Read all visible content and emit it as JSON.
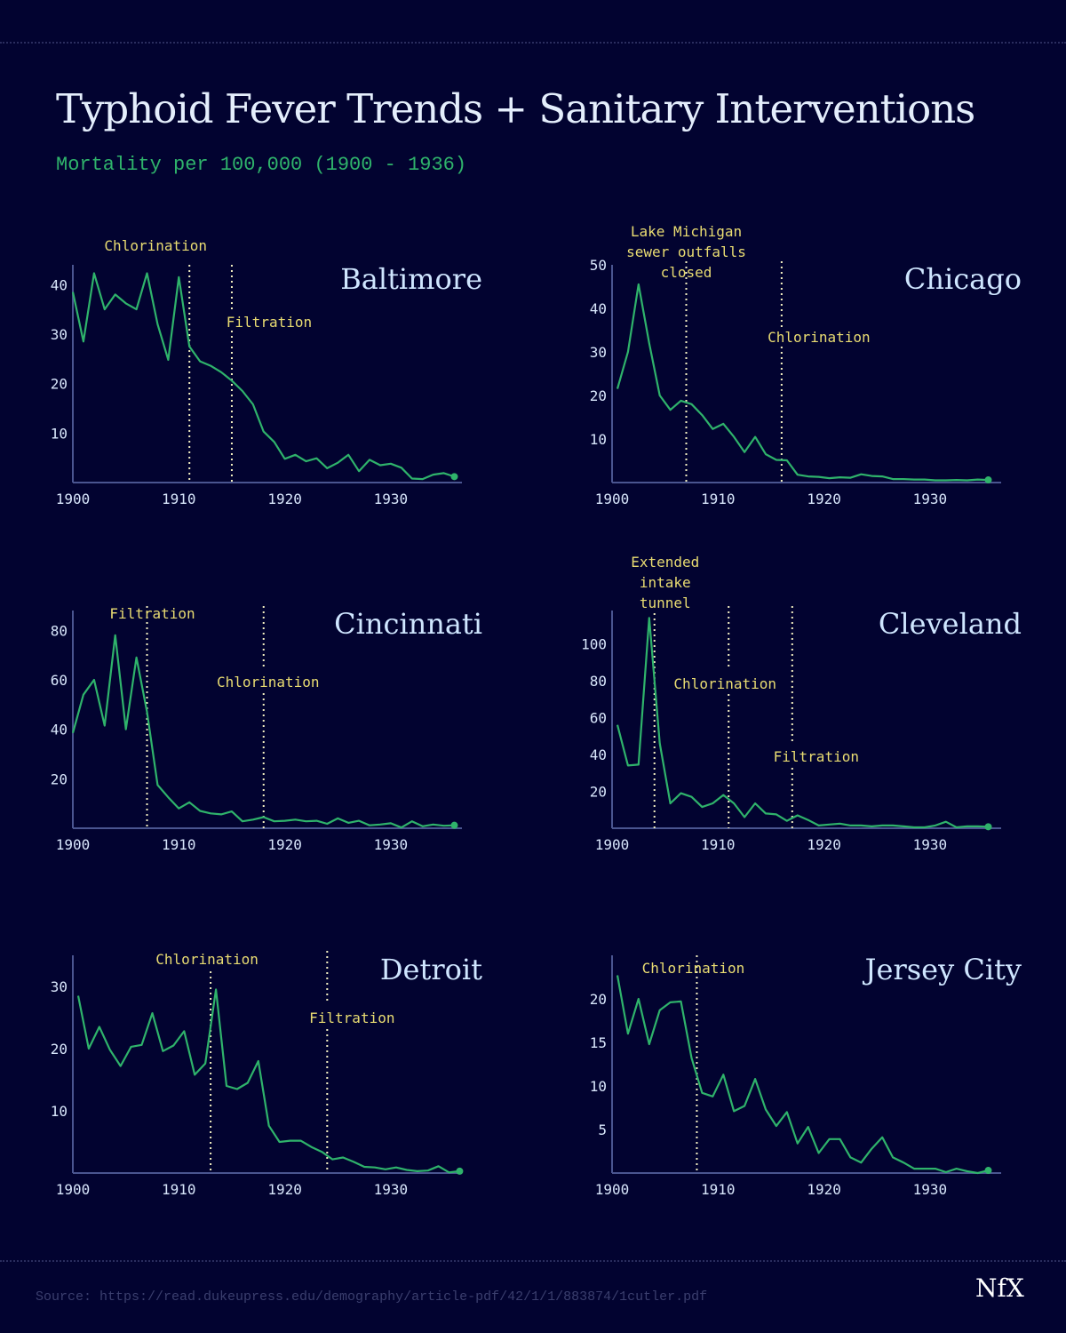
{
  "title": "Typhoid Fever Trends + Sanitary Interventions",
  "subtitle": "Mortality per 100,000 (1900 - 1936)",
  "source": "Source: https://read.dukeupress.edu/demography/article-pdf/42/1/1/883874/1cutler.pdf",
  "logo": "NfX",
  "colors": {
    "background": "#020330",
    "line": "#2fb36b",
    "annotation": "#e9dc72",
    "axis": "#4a5590",
    "text": "#d8e6fb"
  },
  "chart_data": [
    {
      "type": "line",
      "city": "Baltimore",
      "ylim": [
        0,
        44
      ],
      "yticks": [
        10,
        20,
        30,
        40
      ],
      "xticks": [
        1900,
        1910,
        1920,
        1930
      ],
      "x_start": 1900,
      "values": [
        38.5,
        28.5,
        42.3,
        35,
        38,
        36.2,
        35,
        42.3,
        32,
        24.8,
        41.5,
        27.5,
        24.5,
        23.6,
        22.3,
        20.6,
        18.5,
        15.8,
        10.3,
        8.2,
        4.8,
        5.6,
        4.3,
        4.9,
        2.9,
        4,
        5.6,
        2.3,
        4.6,
        3.5,
        3.8,
        3,
        0.8,
        0.7,
        1.6,
        1.9,
        1.2
      ],
      "interventions": [
        {
          "year": 1911,
          "label": [
            "Chlorination"
          ]
        },
        {
          "year": 1915,
          "label": [
            "Filtration"
          ]
        }
      ]
    },
    {
      "type": "line",
      "city": "Chicago",
      "ylim": [
        0,
        50
      ],
      "yticks": [
        10,
        20,
        30,
        40,
        50
      ],
      "xticks": [
        1900,
        1910,
        1920,
        1930
      ],
      "x_start": 1900.5,
      "values": [
        21.5,
        30,
        45.5,
        32,
        20,
        16.7,
        18.8,
        18,
        15.5,
        12.3,
        13.5,
        10.5,
        7,
        10.5,
        6.5,
        5.2,
        5.1,
        1.8,
        1.4,
        1.3,
        1.0,
        1.2,
        1.1,
        1.9,
        1.5,
        1.4,
        0.8,
        0.8,
        0.7,
        0.7,
        0.5,
        0.5,
        0.6,
        0.5,
        0.7,
        0.6
      ],
      "interventions": [
        {
          "year": 1907,
          "label": [
            "Lake Michigan",
            "sewer outfalls",
            "closed"
          ]
        },
        {
          "year": 1916,
          "label": [
            "Chlorination"
          ]
        }
      ]
    },
    {
      "type": "line",
      "city": "Cincinnati",
      "ylim": [
        0,
        88
      ],
      "yticks": [
        20,
        40,
        60,
        80
      ],
      "xticks": [
        1900,
        1910,
        1920,
        1930
      ],
      "x_start": 1900,
      "values": [
        38.5,
        54,
        60,
        41.5,
        78,
        40,
        69,
        47,
        17.5,
        12.5,
        8,
        10.5,
        7,
        6,
        5.6,
        6.8,
        2.8,
        3.5,
        4.5,
        2.8,
        3,
        3.5,
        2.8,
        3,
        1.8,
        4,
        2.2,
        3,
        1.2,
        1.5,
        2,
        0.3,
        2.8,
        0.8,
        1.5,
        1.0,
        1.2
      ],
      "interventions": [
        {
          "year": 1907,
          "label": [
            "Filtration"
          ]
        },
        {
          "year": 1918,
          "label": [
            "Chlorination"
          ]
        }
      ]
    },
    {
      "type": "line",
      "city": "Cleveland",
      "ylim": [
        0,
        118
      ],
      "yticks": [
        20,
        40,
        60,
        80,
        100
      ],
      "xticks": [
        1900,
        1910,
        1920,
        1930
      ],
      "x_start": 1900.5,
      "values": [
        56,
        34,
        34.5,
        114,
        46,
        13.5,
        19,
        17,
        11.5,
        13.5,
        18,
        13.5,
        6,
        13.5,
        8,
        7.5,
        4,
        7,
        4.5,
        1.5,
        2,
        2.5,
        1.5,
        1.5,
        1,
        1.5,
        1.5,
        1,
        0.5,
        0.5,
        1.5,
        3.5,
        0.5,
        1,
        1,
        0.8
      ],
      "interventions": [
        {
          "year": 1904,
          "label": [
            "Extended",
            "intake",
            "tunnel"
          ]
        },
        {
          "year": 1911,
          "label": [
            "Chlorination"
          ]
        },
        {
          "year": 1917,
          "label": [
            "Filtration"
          ]
        }
      ]
    },
    {
      "type": "line",
      "city": "Detroit",
      "ylim": [
        0,
        35
      ],
      "yticks": [
        10,
        20,
        30
      ],
      "xticks": [
        1900,
        1910,
        1920,
        1930
      ],
      "x_start": 1900.5,
      "values": [
        28.5,
        20,
        23.5,
        19.8,
        17.2,
        20.3,
        20.6,
        25.7,
        19.6,
        20.5,
        22.8,
        15.8,
        17.6,
        29.5,
        14,
        13.5,
        14.5,
        18,
        7.6,
        5,
        5.2,
        5.2,
        4.2,
        3.4,
        2.2,
        2.5,
        1.8,
        1,
        0.9,
        0.6,
        0.9,
        0.5,
        0.3,
        0.4,
        1.1,
        0.1,
        0.3
      ],
      "interventions": [
        {
          "year": 1913,
          "label": [
            "Chlorination"
          ]
        },
        {
          "year": 1924,
          "label": [
            "Filtration"
          ]
        }
      ]
    },
    {
      "type": "line",
      "city": "Jersey City",
      "ylim": [
        0,
        25
      ],
      "yticks": [
        5,
        10,
        15,
        20
      ],
      "xticks": [
        1900,
        1910,
        1920,
        1930
      ],
      "x_start": 1900.5,
      "values": [
        22.7,
        16,
        20,
        14.8,
        18.7,
        19.6,
        19.7,
        13.2,
        9.2,
        8.8,
        11.3,
        7.1,
        7.7,
        10.8,
        7.3,
        5.4,
        7.0,
        3.4,
        5.3,
        2.3,
        3.9,
        3.9,
        1.8,
        1.2,
        2.8,
        4.1,
        1.8,
        1.2,
        0.5,
        0.5,
        0.5,
        0.1,
        0.5,
        0.2,
        0,
        0.3
      ],
      "interventions": [
        {
          "year": 1908,
          "label": [
            "Chlorination"
          ]
        }
      ]
    }
  ]
}
